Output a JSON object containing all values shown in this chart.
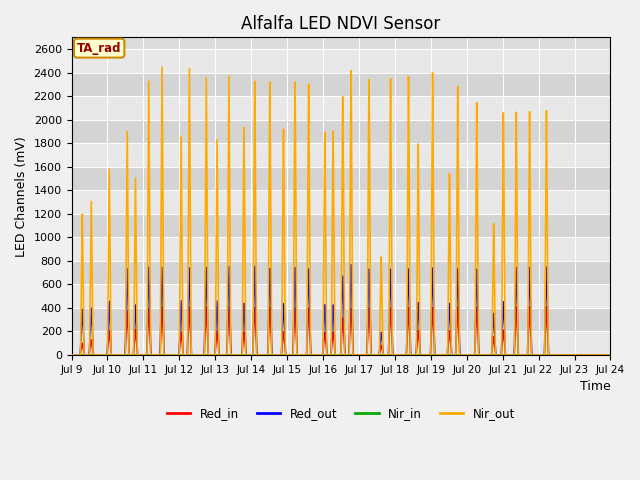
{
  "title": "Alfalfa LED NDVI Sensor",
  "ylabel": "LED Channels (mV)",
  "xlabel": "Time",
  "xlim": [
    0,
    15
  ],
  "ylim": [
    0,
    2700
  ],
  "yticks": [
    0,
    200,
    400,
    600,
    800,
    1000,
    1200,
    1400,
    1600,
    1800,
    2000,
    2200,
    2400,
    2600
  ],
  "xtick_labels": [
    "Jul 9",
    "Jul 10",
    "Jul 11",
    "Jul 12",
    "Jul 13",
    "Jul 14",
    "Jul 15",
    "Jul 16",
    "Jul 17",
    "Jul 18",
    "Jul 19",
    "Jul 20",
    "Jul 21",
    "Jul 22",
    "Jul 23",
    "Jul 24"
  ],
  "bg_color": "#dcdcdc",
  "annotation_text": "TA_rad",
  "annotation_bg": "#ffffcc",
  "annotation_border": "#cc8800",
  "legend_labels": [
    "Red_in",
    "Red_out",
    "Nir_in",
    "Nir_out"
  ],
  "red_in_color": "#ff0000",
  "red_out_color": "#0000ff",
  "nir_in_color": "#00aa00",
  "nir_out_color": "#ffaa00",
  "pulses": [
    [
      0.3,
      100,
      390,
      5,
      1200
    ],
    [
      0.55,
      130,
      400,
      5,
      1310
    ],
    [
      1.05,
      210,
      460,
      5,
      1590
    ],
    [
      1.55,
      380,
      740,
      5,
      1920
    ],
    [
      1.78,
      220,
      430,
      5,
      1520
    ],
    [
      2.15,
      400,
      755,
      5,
      2360
    ],
    [
      2.52,
      415,
      755,
      5,
      2490
    ],
    [
      3.05,
      200,
      470,
      5,
      1900
    ],
    [
      3.28,
      415,
      755,
      5,
      2490
    ],
    [
      3.75,
      415,
      760,
      5,
      2420
    ],
    [
      4.05,
      210,
      470,
      5,
      1880
    ],
    [
      4.38,
      415,
      770,
      5,
      2440
    ],
    [
      4.8,
      200,
      450,
      5,
      2000
    ],
    [
      5.1,
      415,
      775,
      5,
      2410
    ],
    [
      5.52,
      415,
      760,
      5,
      2410
    ],
    [
      5.9,
      205,
      450,
      5,
      2000
    ],
    [
      6.22,
      415,
      770,
      5,
      2420
    ],
    [
      6.6,
      415,
      760,
      5,
      2410
    ],
    [
      7.05,
      200,
      445,
      5,
      1990
    ],
    [
      7.28,
      205,
      445,
      5,
      2000
    ],
    [
      7.55,
      330,
      700,
      5,
      2310
    ],
    [
      7.78,
      415,
      800,
      5,
      2540
    ],
    [
      8.28,
      415,
      760,
      5,
      2450
    ],
    [
      8.62,
      85,
      200,
      5,
      870
    ],
    [
      8.88,
      415,
      755,
      5,
      2450
    ],
    [
      9.38,
      415,
      755,
      5,
      2460
    ],
    [
      9.65,
      215,
      460,
      5,
      1860
    ],
    [
      10.05,
      415,
      760,
      5,
      2480
    ],
    [
      10.52,
      215,
      450,
      5,
      1590
    ],
    [
      10.75,
      415,
      750,
      5,
      2350
    ],
    [
      11.28,
      415,
      745,
      5,
      2200
    ],
    [
      11.75,
      160,
      360,
      5,
      1140
    ],
    [
      12.02,
      215,
      460,
      5,
      2100
    ],
    [
      12.38,
      415,
      755,
      5,
      2100
    ],
    [
      12.75,
      415,
      755,
      5,
      2100
    ],
    [
      13.22,
      415,
      755,
      5,
      2100
    ]
  ]
}
